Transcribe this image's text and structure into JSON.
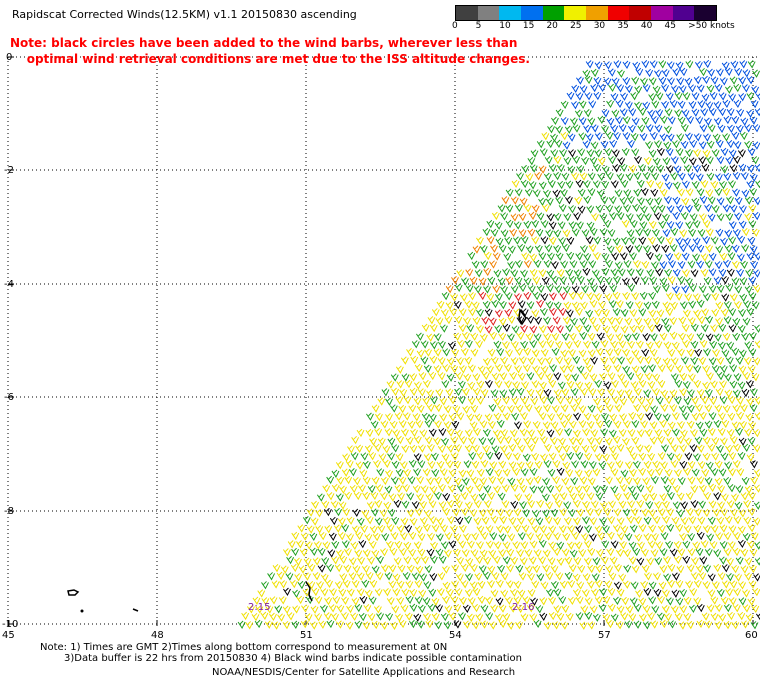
{
  "header": {
    "title": "Rapidscat Corrected Winds(12.5KM) v1.1 20150830 ascending",
    "note_line1": "Note: black circles have been added to the wind barbs, wherever less than",
    "note_line2": "    optimal wind retrieval conditions are met due to the ISS altitude changes."
  },
  "legend": {
    "labels": [
      "0",
      "5",
      "10",
      "15",
      "20",
      "25",
      "30",
      "35",
      "40",
      "45",
      ">50 knots"
    ],
    "colors": [
      "#404040",
      "#808080",
      "#00b8f0",
      "#0070f0",
      "#00a000",
      "#f0f000",
      "#f0a000",
      "#f00000",
      "#c00000",
      "#a000a0",
      "#500090",
      "#1a0030"
    ]
  },
  "axes": {
    "y_ticks": [
      "0",
      "-2",
      "-4",
      "-6",
      "-8",
      "-10"
    ],
    "x_ticks": [
      "45",
      "48",
      "51",
      "54",
      "57",
      "60"
    ]
  },
  "times": [
    "2:15",
    "2:16"
  ],
  "footer": {
    "line1": "Note: 1) Times are GMT 2)Times along bottom correspond to measurement at 0N",
    "line2": "3)Data buffer is 22 hrs from 20150830 4) Black wind barbs indicate possible contamination",
    "credit": "NOAA/NESDIS/Center for Satellite Applications and Research"
  },
  "map": {
    "grid": "dotted",
    "swath": "diagonal ascending pass from lower-left to upper-right",
    "wind_colors": {
      "weak": "#f0e000",
      "moderate": "#20a020",
      "strong": "#0050e0",
      "contaminated": "#000000",
      "high": "#e02020",
      "orange": "#f08000"
    }
  }
}
